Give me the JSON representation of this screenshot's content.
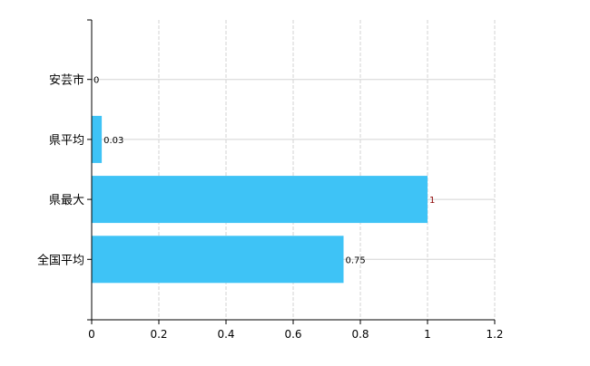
{
  "chart_data": {
    "type": "bar",
    "orientation": "horizontal",
    "categories": [
      "安芸市",
      "県平均",
      "県最大",
      "全国平均"
    ],
    "values": [
      0,
      0.03,
      1,
      0.75
    ],
    "data_labels": [
      "0",
      "0.03",
      "1",
      "0.75"
    ],
    "xlim": [
      0,
      1.2
    ],
    "xticks": [
      "0",
      "0.2",
      "0.4",
      "0.6",
      "0.8",
      "1",
      "1.2"
    ],
    "title": "",
    "xlabel": "",
    "ylabel": "",
    "grid": true,
    "bar_color": "#3EC3F6"
  }
}
